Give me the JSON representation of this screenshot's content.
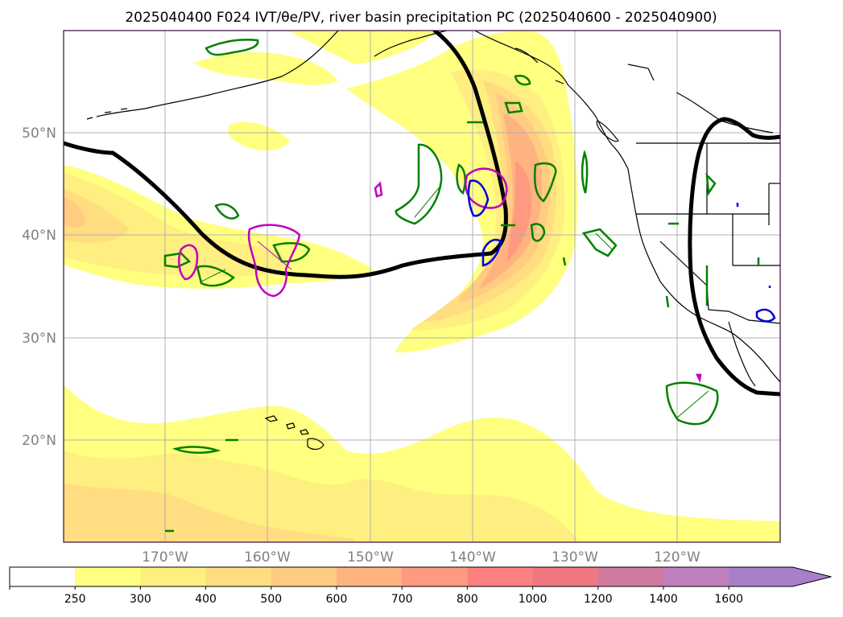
{
  "title": "2025040400 F024 IVT/θe/PV, river basin precipitation PC (2025040600 - 2025040900)",
  "lat_labels": [
    "50°N",
    "40°N",
    "30°N",
    "20°N"
  ],
  "lon_labels": [
    "170°W",
    "160°W",
    "150°W",
    "140°W",
    "130°W",
    "120°W"
  ],
  "colorbar": {
    "ticks": [
      "250",
      "300",
      "400",
      "500",
      "600",
      "700",
      "800",
      "1000",
      "1200",
      "1400",
      "1600"
    ],
    "colors": [
      "#ffffff",
      "#ffff80",
      "#ffee80",
      "#ffdd80",
      "#ffcc80",
      "#ffb380",
      "#ff9980",
      "#ff8080",
      "#ee7780",
      "#d07aa0",
      "#c080c0",
      "#a880c8"
    ],
    "extend": "max"
  },
  "colors": {
    "frame": "#3d0a3d",
    "grid": "#b0b0b0",
    "coast": "#000000",
    "theta_e_contour": "#000000",
    "pv_contour_green": "#008000",
    "pv_contour_magenta": "#c000c0",
    "pv_contour_blue": "#0000e0",
    "lat_lon_label": "#808080"
  }
}
